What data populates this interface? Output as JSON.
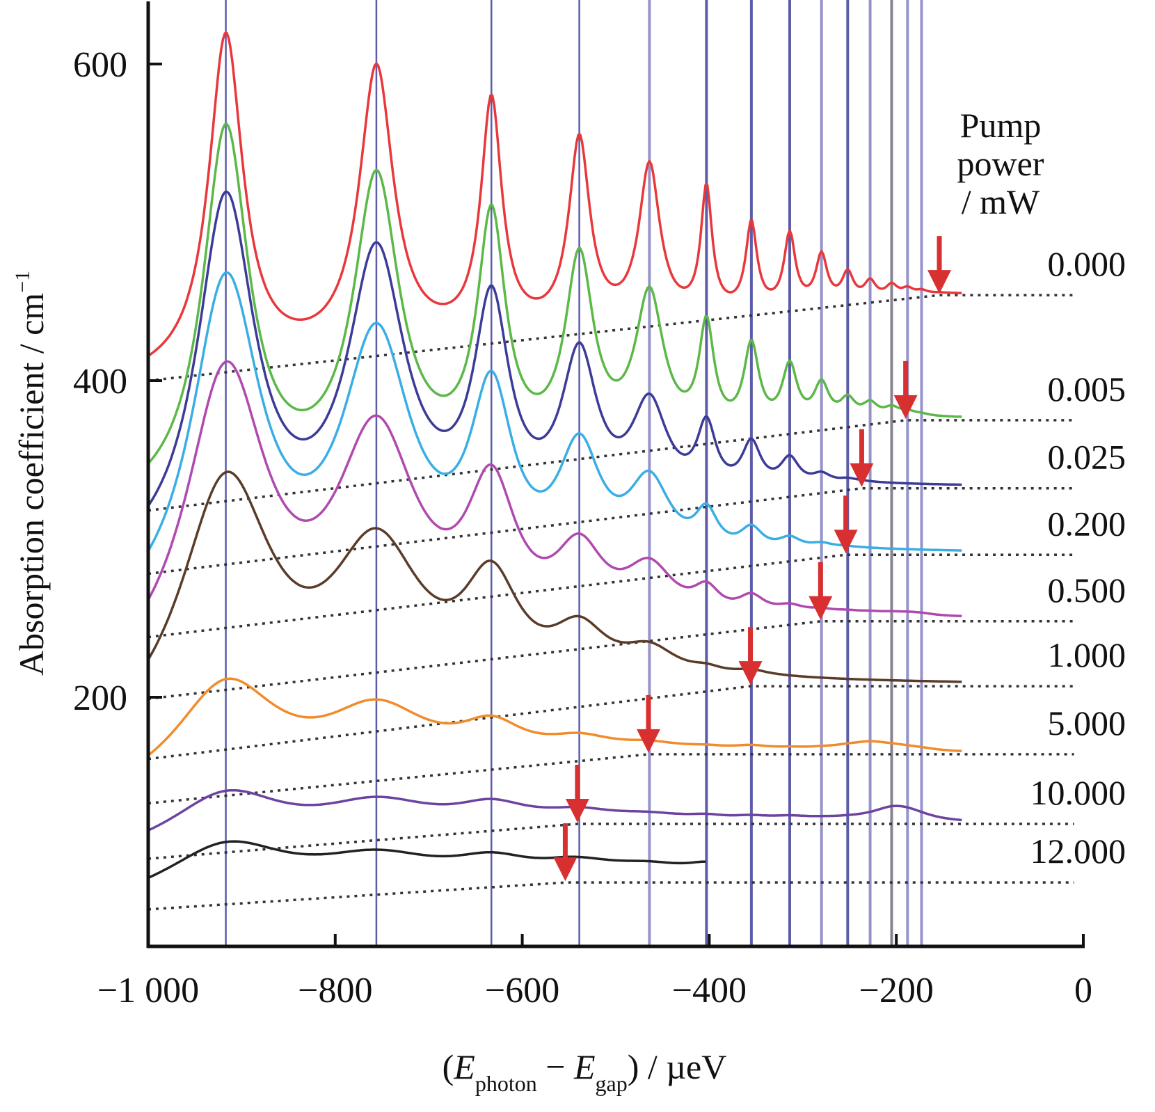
{
  "chart_data": {
    "type": "line",
    "title": "",
    "xlabel": "(E_photon − E_gap) / µeV",
    "xlabel_parts": {
      "open": "(",
      "e1": "E",
      "sub1": "photon",
      "minus": " − ",
      "e2": "E",
      "sub2": "gap",
      "close": ") / µeV"
    },
    "ylabel": "Absorption coefficient / cm",
    "ylabel_sup": "−1",
    "xlim": [
      -1000,
      0
    ],
    "ylim": [
      42,
      640
    ],
    "x_ticks": [
      -1000,
      -800,
      -600,
      -400,
      -200,
      0
    ],
    "x_tick_labels": [
      "−1 000",
      "−800",
      "−600",
      "−400",
      "−200",
      "0"
    ],
    "y_ticks": [
      200,
      400,
      600
    ],
    "y_tick_labels": [
      "200",
      "400",
      "600"
    ],
    "grid": false,
    "legend": {
      "title_lines": [
        "Pump",
        "power",
        "/ mW"
      ],
      "placement": "right"
    },
    "resonance_lines_x": [
      -917,
      -756,
      -633,
      -539,
      -464,
      -403,
      -355,
      -314,
      -280,
      -252,
      -228,
      -205,
      -188,
      -173
    ],
    "resonance_line_colors": [
      "#4a4aa0",
      "#4a4aa0",
      "#4a4aa0",
      "#4a4aa0",
      "#8a88c4",
      "#4a4aa0",
      "#4a4aa0",
      "#4a4aa0",
      "#8a88c4",
      "#4a4aa0",
      "#8a88c4",
      "#7a7488",
      "#8a88c4",
      "#8a88c4"
    ],
    "series": [
      {
        "name": "0.000",
        "color": "#e8383c",
        "x_end": -130,
        "baseline": {
          "x0": -1000,
          "y0": 400,
          "x_flat": -154,
          "y_flat": 454
        },
        "peaks_y": [
          616,
          594,
          571,
          547,
          531,
          516,
          495,
          489,
          476,
          465,
          460,
          458,
          456,
          455
        ],
        "arrow_x": -154
      },
      {
        "name": "0.005",
        "color": "#5cb848",
        "x_end": -130,
        "baseline": {
          "x0": -1000,
          "y0": 318,
          "x_flat": -190,
          "y_flat": 375
        },
        "peaks_y": [
          555,
          521,
          493,
          468,
          446,
          426,
          415,
          403,
          392,
          383,
          381,
          379,
          377,
          376
        ],
        "arrow_x": -190
      },
      {
        "name": "0.025",
        "color": "#3c3c98",
        "x_end": -130,
        "baseline": {
          "x0": -1000,
          "y0": 278,
          "x_flat": -237,
          "y_flat": 332
        },
        "peaks_y": [
          509,
          470,
          435,
          404,
          375,
          361,
          352,
          344,
          335,
          333,
          332,
          332,
          332,
          332
        ],
        "arrow_x": -237
      },
      {
        "name": "0.200",
        "color": "#3aaee4",
        "x_end": -130,
        "baseline": {
          "x0": -1000,
          "y0": 238,
          "x_flat": -254,
          "y_flat": 290
        },
        "peaks_y": [
          455,
          414,
          375,
          342,
          324,
          304,
          297,
          293,
          291,
          290,
          290,
          290,
          290,
          290
        ],
        "arrow_x": -254
      },
      {
        "name": "0.500",
        "color": "#b04aae",
        "x_end": -130,
        "baseline": {
          "x0": -1000,
          "y0": 199,
          "x_flat": -281,
          "y_flat": 248
        },
        "peaks_y": [
          397,
          352,
          313,
          277,
          269,
          255,
          254,
          250,
          249,
          249,
          249,
          249,
          249,
          249
        ],
        "arrow_x": -281
      },
      {
        "name": "1.000",
        "color": "#5a3c28",
        "x_end": -130,
        "baseline": {
          "x0": -1000,
          "y0": 161,
          "x_flat": -356,
          "y_flat": 207
        },
        "peaks_y": [
          328,
          280,
          254,
          227,
          218,
          207,
          209,
          207,
          207,
          207,
          207,
          207,
          207,
          207
        ],
        "arrow_x": -356
      },
      {
        "name": "5.000",
        "color": "#f08c2c",
        "x_end": -130,
        "baseline": {
          "x0": -1000,
          "y0": 133,
          "x_flat": -465,
          "y_flat": 164
        },
        "peaks_y": [
          205,
          186,
          174,
          168,
          166,
          165,
          166,
          165,
          165,
          166,
          168,
          166,
          165,
          165
        ],
        "arrow_x": -465
      },
      {
        "name": "10.000",
        "color": "#6c44a0",
        "x_end": -130,
        "baseline": {
          "x0": -1000,
          "y0": 98,
          "x_flat": -541,
          "y_flat": 120
        },
        "peaks_y": [
          137,
          129,
          127,
          124,
          123,
          122,
          122,
          122,
          121,
          121,
          121,
          126,
          124,
          121
        ],
        "arrow_x": -541
      },
      {
        "name": "12.000",
        "color": "#222222",
        "x_end": -403,
        "baseline": {
          "x0": -1000,
          "y0": 66,
          "x_flat": -554,
          "y_flat": 83
        },
        "peaks_y": [
          104,
          94,
          91,
          90,
          89,
          88,
          88,
          88,
          88,
          88,
          88,
          88,
          88,
          88
        ],
        "arrow_x": -554
      }
    ],
    "arrow_color": "#d83030",
    "baseline_style": "dotted"
  }
}
